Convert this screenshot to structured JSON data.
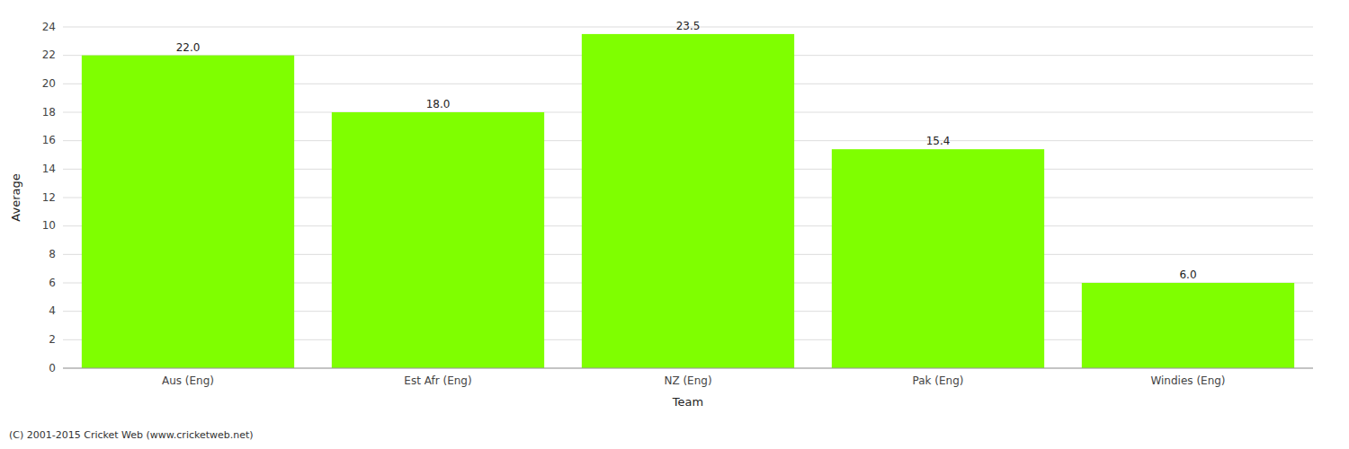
{
  "chart_data": {
    "type": "bar",
    "categories": [
      "Aus (Eng)",
      "Est Afr (Eng)",
      "NZ (Eng)",
      "Pak (Eng)",
      "Windies (Eng)"
    ],
    "values": [
      22.0,
      18.0,
      23.5,
      15.4,
      6.0
    ],
    "value_labels": [
      "22.0",
      "18.0",
      "23.5",
      "15.4",
      "6.0"
    ],
    "color": "#7FFF00",
    "xlabel": "Team",
    "ylabel": "Average",
    "ylim": [
      0,
      24
    ],
    "yticks": [
      0,
      2,
      4,
      6,
      8,
      10,
      12,
      14,
      16,
      18,
      20,
      22,
      24
    ],
    "grid": true,
    "data_labels": true,
    "footer": "(C) 2001-2015 Cricket Web (www.cricketweb.net)"
  }
}
